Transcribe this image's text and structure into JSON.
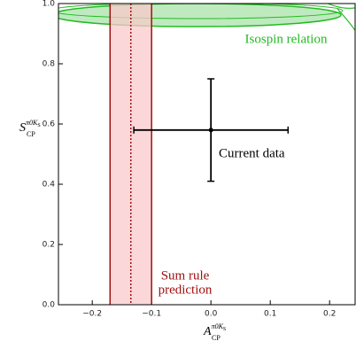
{
  "chart_data": {
    "type": "scatter",
    "xlabel": {
      "symbol": "A",
      "sub": "CP",
      "sup": "π0K",
      "supsub": "S"
    },
    "ylabel": {
      "symbol": "S",
      "sub": "CP",
      "sup": "π0K",
      "supsub": "S"
    },
    "xlim": [
      -0.257,
      0.243
    ],
    "ylim": [
      0,
      1.0
    ],
    "xticks": [
      {
        "value": -0.2,
        "label": "−0.2"
      },
      {
        "value": -0.1,
        "label": "−0.1"
      },
      {
        "value": 0,
        "label": "0.0"
      },
      0.1,
      0.2
    ],
    "yticks": [
      {
        "value": 0,
        "label": "0.0"
      },
      0.2,
      0.4,
      0.6,
      0.8,
      {
        "value": 1.0,
        "label": "1.0"
      }
    ],
    "series": [
      {
        "name": "Current data",
        "color": "#000000",
        "x": [
          0
        ],
        "values": [
          0.58
        ],
        "xerr": [
          0.13
        ],
        "yerr": [
          0.17
        ]
      }
    ],
    "band": {
      "label": [
        "Sum rule",
        "prediction"
      ],
      "range": [
        -0.17,
        -0.1
      ],
      "center": -0.135,
      "color": "#a01010",
      "fill": "#f9c9cc"
    },
    "region": {
      "label": "Isospin relation",
      "color": "#22bb22",
      "fill": "#bfeabf"
    }
  }
}
